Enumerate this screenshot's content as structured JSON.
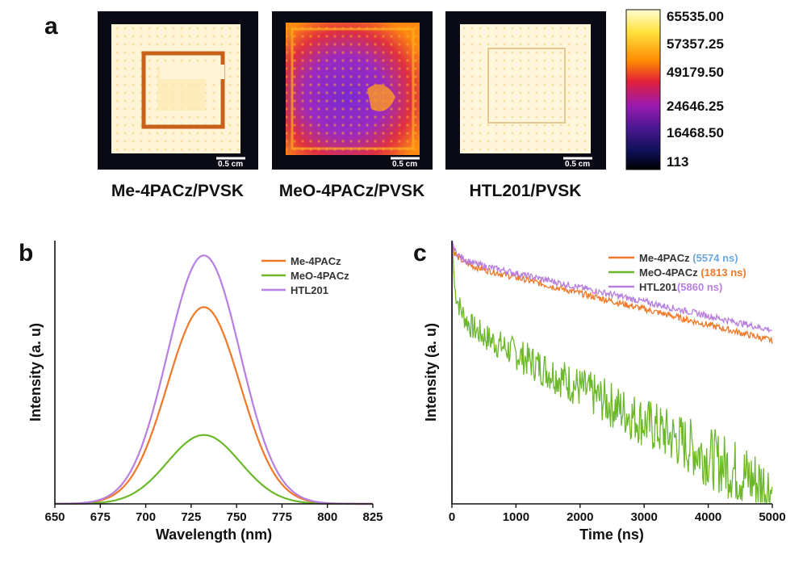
{
  "panel_letters": {
    "a": "a",
    "b": "b",
    "c": "c"
  },
  "panel_a": {
    "images": [
      {
        "label": "Me-4PACz/PVSK",
        "scale_bar": "0.5 cm"
      },
      {
        "label": "MeO-4PACz/PVSK",
        "scale_bar": "0.5 cm"
      },
      {
        "label": "HTL201/PVSK",
        "scale_bar": "0.5 cm"
      }
    ],
    "colorbar": {
      "labels": [
        "65535.00",
        "57357.25",
        "49179.50",
        "24646.25",
        "16468.50",
        "113"
      ],
      "colors": [
        "#fffdd0",
        "#ffe23c",
        "#ff8a00",
        "#e0203a",
        "#9a1ab0",
        "#4a1890",
        "#10105a",
        "#000000"
      ]
    }
  },
  "chart_data": [
    {
      "type": "line",
      "panel": "b",
      "xlabel": "Wavelength (nm)",
      "ylabel": "Intensity (a. u)",
      "xlim": [
        650,
        825
      ],
      "ylim": [
        0,
        1.07
      ],
      "xticks": [
        650,
        675,
        700,
        725,
        750,
        775,
        800,
        825
      ],
      "legend_position": "top-right",
      "series": [
        {
          "name": "Me-4PACz",
          "color": "#f07828",
          "peak": 732,
          "amplitude": 0.8
        },
        {
          "name": "MeO-4PACz",
          "color": "#6cb82a",
          "peak": 732,
          "amplitude": 0.28
        },
        {
          "name": "HTL201",
          "color": "#b77fe0",
          "peak": 732,
          "amplitude": 1.01
        }
      ]
    },
    {
      "type": "line",
      "panel": "c",
      "xlabel": "Time (ns)",
      "ylabel": "Intensity (a. u)",
      "xlim": [
        0,
        5000
      ],
      "ylim": [
        0,
        1.0
      ],
      "xticks": [
        0,
        1000,
        2000,
        3000,
        4000,
        5000
      ],
      "legend_position": "top-right",
      "series": [
        {
          "name": "Me-4PACz",
          "lifetime": "(5574 ns)",
          "color": "#f07828",
          "lifetime_color": "#6fa8d8",
          "start": 0.92,
          "end": 0.62
        },
        {
          "name": "MeO-4PACz",
          "lifetime": "(1813 ns)",
          "color": "#6cb82a",
          "lifetime_color": "#f07828",
          "start": 0.7,
          "end": 0.05
        },
        {
          "name": "HTL201",
          "lifetime": "(5860 ns)",
          "color": "#b77fe0",
          "lifetime_color": "#b77fe0",
          "start": 0.93,
          "end": 0.66
        }
      ]
    }
  ]
}
